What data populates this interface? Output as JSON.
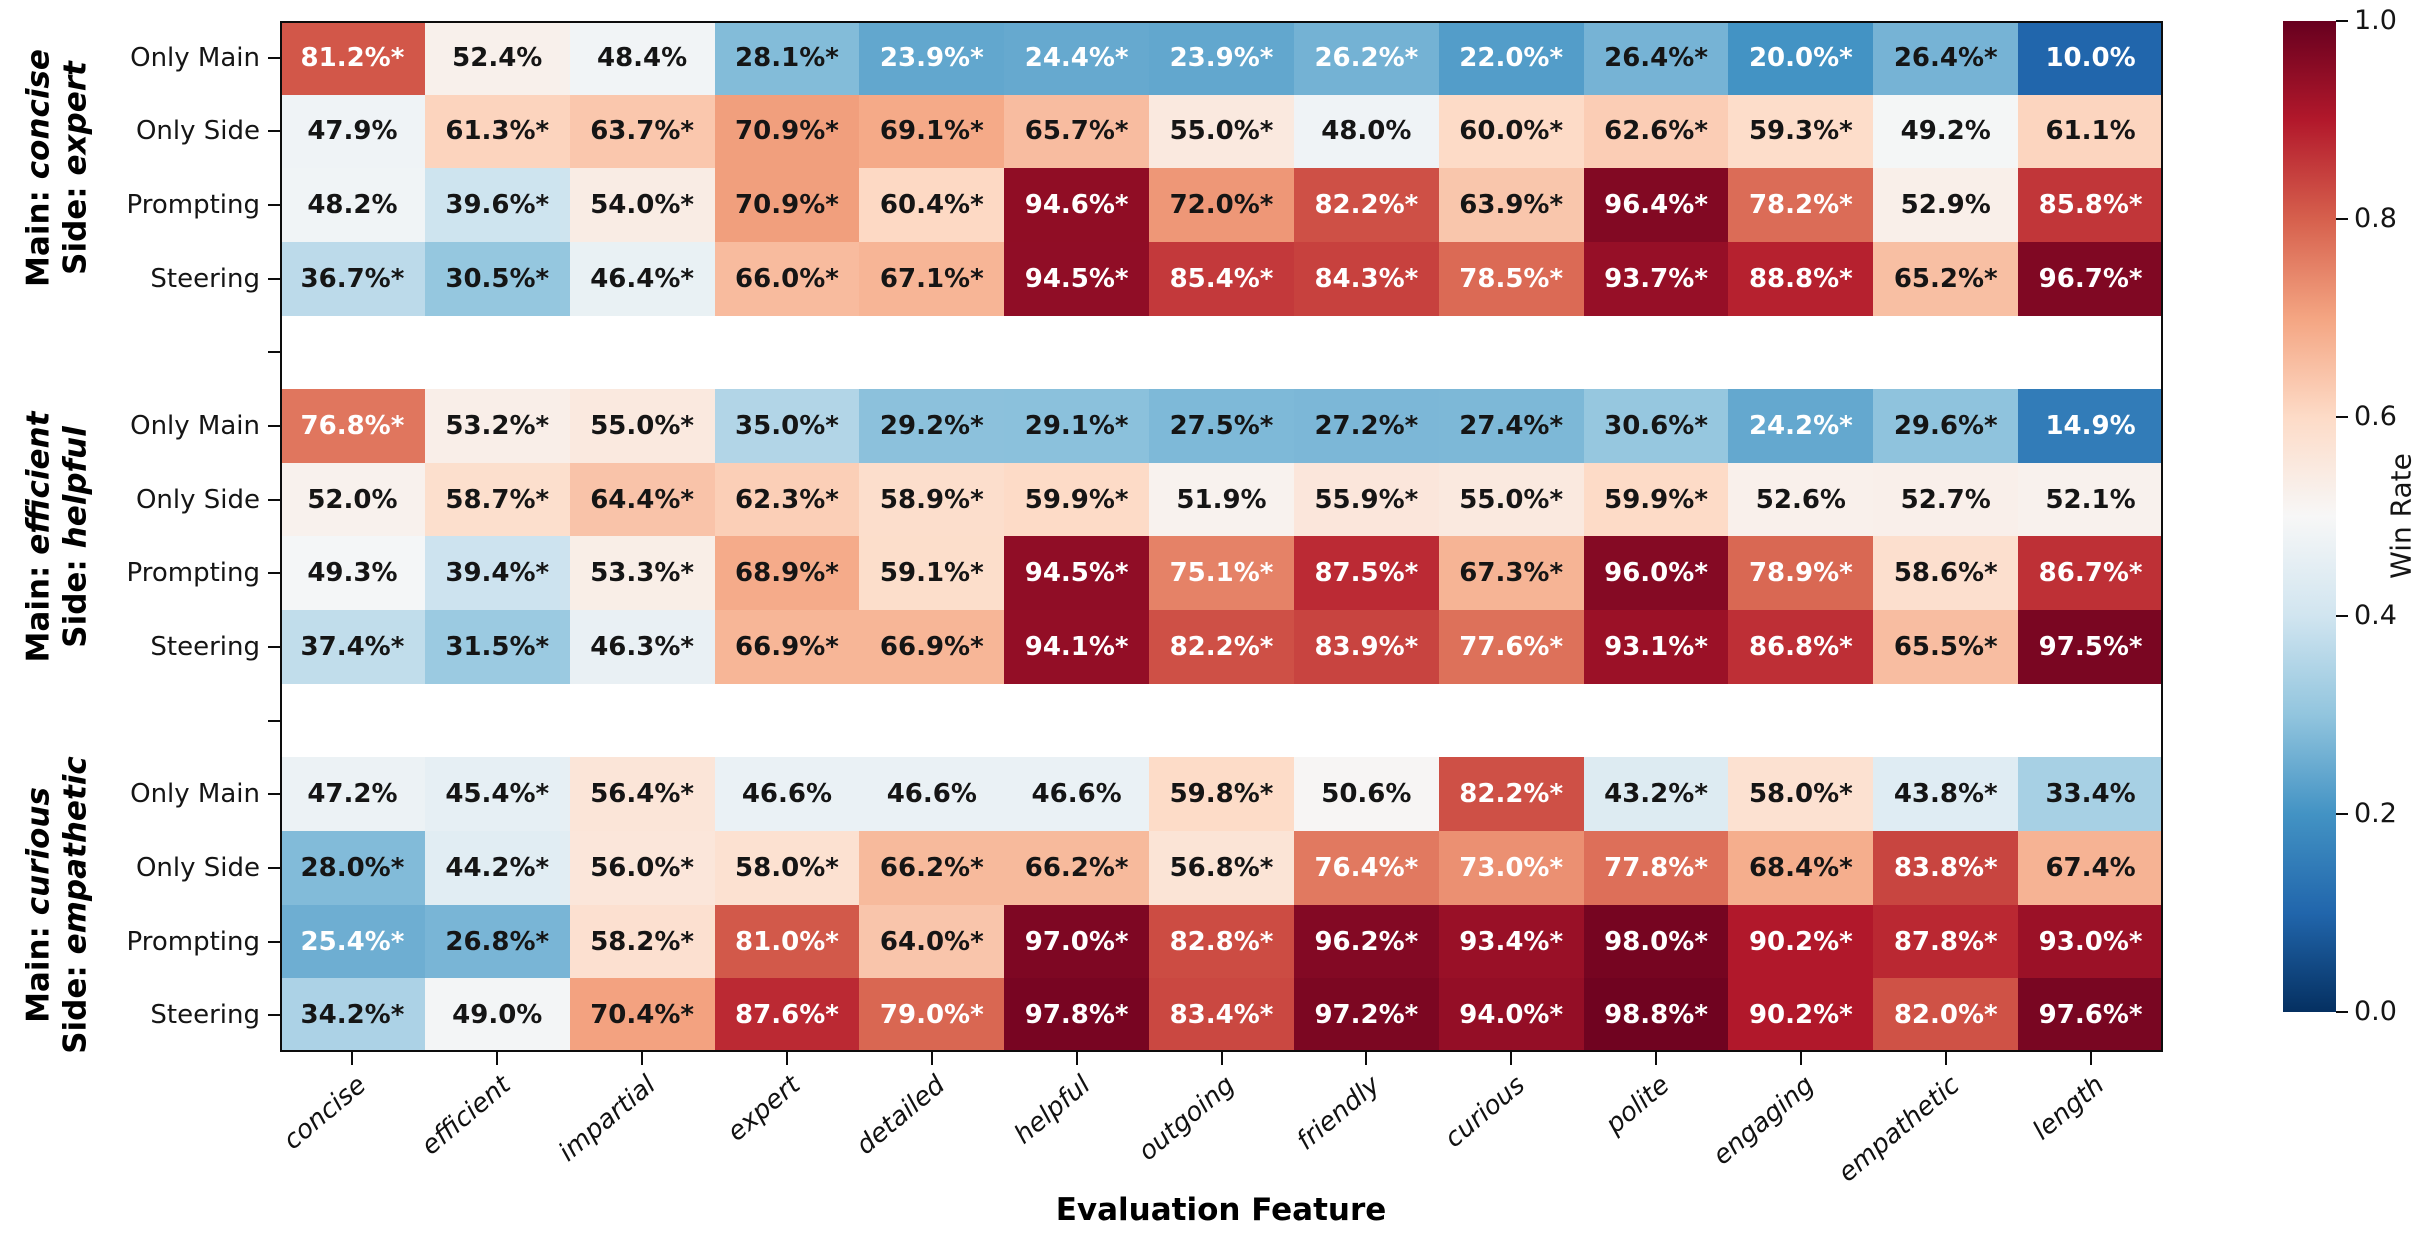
{
  "figure": {
    "background": "#ffffff",
    "spine_color": "#0d0d0d"
  },
  "chart_data": {
    "type": "heatmap",
    "xlabel": "Evaluation Feature",
    "columns": [
      "concise",
      "efficient",
      "impartial",
      "expert",
      "detailed",
      "helpful",
      "outgoing",
      "friendly",
      "curious",
      "polite",
      "engaging",
      "empathetic",
      "length"
    ],
    "row_labels": [
      "Only Main",
      "Only Side",
      "Prompting",
      "Steering"
    ],
    "value_unit": "percent",
    "significance_marker": "*",
    "panels": [
      {
        "main_prefix": "Main:",
        "main": "concise",
        "side_prefix": "Side:",
        "side": "expert",
        "rows": [
          {
            "values": [
              81.2,
              52.4,
              48.4,
              28.1,
              23.9,
              24.4,
              23.9,
              26.2,
              22.0,
              26.4,
              20.0,
              26.4,
              10.0
            ],
            "significant": [
              true,
              false,
              false,
              true,
              true,
              true,
              true,
              true,
              true,
              true,
              true,
              true,
              false
            ]
          },
          {
            "values": [
              47.9,
              61.3,
              63.7,
              70.9,
              69.1,
              65.7,
              55.0,
              48.0,
              60.0,
              62.6,
              59.3,
              49.2,
              61.1
            ],
            "significant": [
              false,
              true,
              true,
              true,
              true,
              true,
              true,
              false,
              true,
              true,
              true,
              false,
              false
            ]
          },
          {
            "values": [
              48.2,
              39.6,
              54.0,
              70.9,
              60.4,
              94.6,
              72.0,
              82.2,
              63.9,
              96.4,
              78.2,
              52.9,
              85.8
            ],
            "significant": [
              false,
              true,
              true,
              true,
              true,
              true,
              true,
              true,
              true,
              true,
              true,
              false,
              true
            ]
          },
          {
            "values": [
              36.7,
              30.5,
              46.4,
              66.0,
              67.1,
              94.5,
              85.4,
              84.3,
              78.5,
              93.7,
              88.8,
              65.2,
              96.7
            ],
            "significant": [
              true,
              true,
              true,
              true,
              true,
              true,
              true,
              true,
              true,
              true,
              true,
              true,
              true
            ]
          }
        ]
      },
      {
        "main_prefix": "Main:",
        "main": "efficient",
        "side_prefix": "Side:",
        "side": "helpful",
        "rows": [
          {
            "values": [
              76.8,
              53.2,
              55.0,
              35.0,
              29.2,
              29.1,
              27.5,
              27.2,
              27.4,
              30.6,
              24.2,
              29.6,
              14.9
            ],
            "significant": [
              true,
              true,
              true,
              true,
              true,
              true,
              true,
              true,
              true,
              true,
              true,
              true,
              false
            ]
          },
          {
            "values": [
              52.0,
              58.7,
              64.4,
              62.3,
              58.9,
              59.9,
              51.9,
              55.9,
              55.0,
              59.9,
              52.6,
              52.7,
              52.1
            ],
            "significant": [
              false,
              true,
              true,
              true,
              true,
              true,
              false,
              true,
              true,
              true,
              false,
              false,
              false
            ]
          },
          {
            "values": [
              49.3,
              39.4,
              53.3,
              68.9,
              59.1,
              94.5,
              75.1,
              87.5,
              67.3,
              96.0,
              78.9,
              58.6,
              86.7
            ],
            "significant": [
              false,
              true,
              true,
              true,
              true,
              true,
              true,
              true,
              true,
              true,
              true,
              true,
              true
            ]
          },
          {
            "values": [
              37.4,
              31.5,
              46.3,
              66.9,
              66.9,
              94.1,
              82.2,
              83.9,
              77.6,
              93.1,
              86.8,
              65.5,
              97.5
            ],
            "significant": [
              true,
              true,
              true,
              true,
              true,
              true,
              true,
              true,
              true,
              true,
              true,
              true,
              true
            ]
          }
        ]
      },
      {
        "main_prefix": "Main:",
        "main": "curious",
        "side_prefix": "Side:",
        "side": "empathetic",
        "rows": [
          {
            "values": [
              47.2,
              45.4,
              56.4,
              46.6,
              46.6,
              46.6,
              59.8,
              50.6,
              82.2,
              43.2,
              58.0,
              43.8,
              33.4
            ],
            "significant": [
              false,
              true,
              true,
              false,
              false,
              false,
              true,
              false,
              true,
              true,
              true,
              true,
              false
            ]
          },
          {
            "values": [
              28.0,
              44.2,
              56.0,
              58.0,
              66.2,
              66.2,
              56.8,
              76.4,
              73.0,
              77.8,
              68.4,
              83.8,
              67.4
            ],
            "significant": [
              true,
              true,
              true,
              true,
              true,
              true,
              true,
              true,
              true,
              true,
              true,
              true,
              false
            ]
          },
          {
            "values": [
              25.4,
              26.8,
              58.2,
              81.0,
              64.0,
              97.0,
              82.8,
              96.2,
              93.4,
              98.0,
              90.2,
              87.8,
              93.0
            ],
            "significant": [
              true,
              true,
              true,
              true,
              true,
              true,
              true,
              true,
              true,
              true,
              true,
              true,
              true
            ]
          },
          {
            "values": [
              34.2,
              49.0,
              70.4,
              87.6,
              79.0,
              97.8,
              83.4,
              97.2,
              94.0,
              98.8,
              90.2,
              82.0,
              97.6
            ],
            "significant": [
              true,
              false,
              true,
              true,
              true,
              true,
              true,
              true,
              true,
              true,
              true,
              true,
              true
            ]
          }
        ]
      }
    ],
    "colormap": {
      "name": "RdBu_r",
      "stops": [
        "#053061",
        "#2166ac",
        "#4393c4",
        "#92c5de",
        "#d1e5f0",
        "#f7f7f7",
        "#fddbc7",
        "#f4a582",
        "#d6604d",
        "#b2182b",
        "#67001f"
      ]
    },
    "colorbar": {
      "label": "Win Rate",
      "tick_labels": [
        "1.0",
        "0.8",
        "0.6",
        "0.4",
        "0.2",
        "0.0"
      ],
      "vmin": 0.0,
      "vmax": 1.0
    },
    "layout": {
      "grid": false,
      "colorbar_position": "right",
      "x_tick_rotation_deg": 40
    }
  }
}
